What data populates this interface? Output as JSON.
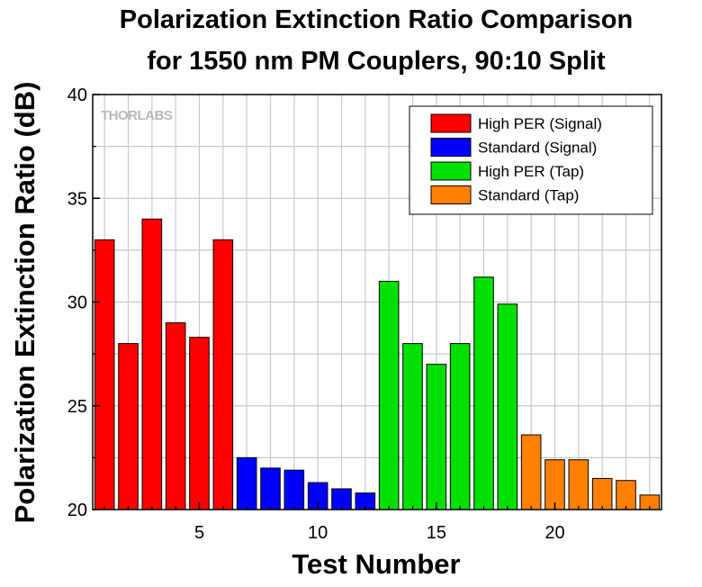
{
  "chart_data": {
    "type": "bar",
    "title_line1": "Polarization Extinction Ratio Comparison",
    "title_line2": "for 1550 nm PM Couplers, 90:10 Split",
    "xlabel": "Test Number",
    "ylabel": "Polarization Extinction Ratio (dB)",
    "watermark": "THORLABS",
    "xlim": [
      0.5,
      24.5
    ],
    "ylim": [
      20,
      40
    ],
    "x_ticks": [
      5,
      10,
      15,
      20
    ],
    "y_ticks": [
      20,
      25,
      30,
      35,
      40
    ],
    "grid": true,
    "legend_position": "top-right",
    "series": [
      {
        "name": "High PER (Signal)",
        "color": "#ff0000",
        "x": [
          1,
          2,
          3,
          4,
          5,
          6
        ],
        "values": [
          33.0,
          28.0,
          34.0,
          29.0,
          28.3,
          33.0
        ]
      },
      {
        "name": "Standard (Signal)",
        "color": "#0000ff",
        "x": [
          7,
          8,
          9,
          10,
          11,
          12
        ],
        "values": [
          22.5,
          22.0,
          21.9,
          21.3,
          21.0,
          20.8
        ]
      },
      {
        "name": "High PER (Tap)",
        "color": "#00e000",
        "x": [
          13,
          14,
          15,
          16,
          17,
          18
        ],
        "values": [
          31.0,
          28.0,
          27.0,
          28.0,
          31.2,
          29.9
        ]
      },
      {
        "name": "Standard (Tap)",
        "color": "#ff8000",
        "x": [
          19,
          20,
          21,
          22,
          23,
          24
        ],
        "values": [
          23.6,
          22.4,
          22.4,
          21.5,
          21.4,
          20.7
        ]
      }
    ]
  }
}
